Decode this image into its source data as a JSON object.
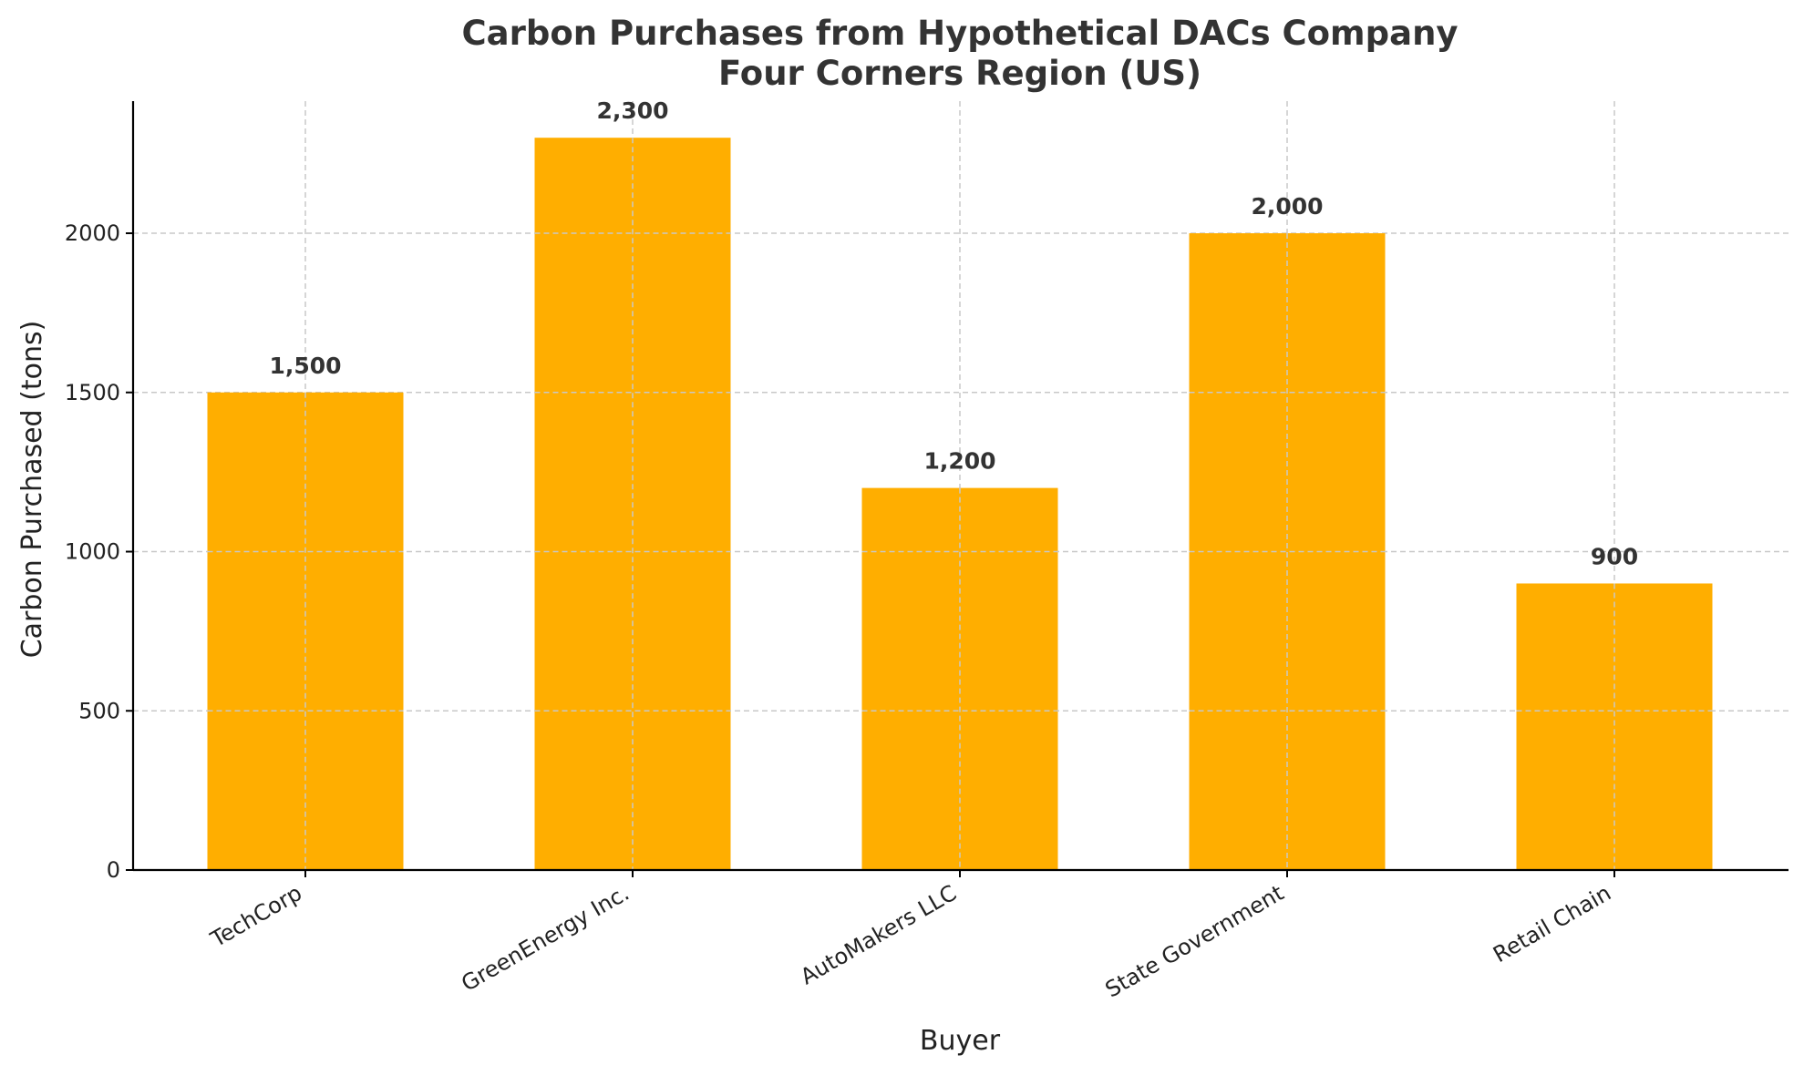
{
  "chart_data": {
    "type": "bar",
    "title_lines": [
      "Carbon Purchases from Hypothetical DACs Company",
      "Four Corners Region (US)"
    ],
    "xlabel": "Buyer",
    "ylabel": "Carbon Purchased (tons)",
    "categories": [
      "TechCorp",
      "GreenEnergy Inc.",
      "AutoMakers LLC",
      "State Government",
      "Retail Chain"
    ],
    "values": [
      1500,
      2300,
      1200,
      2000,
      900
    ],
    "data_labels": [
      "1,500",
      "2,300",
      "1,200",
      "2,000",
      "900"
    ],
    "ylim": [
      0,
      2415
    ],
    "yticks": [
      0,
      500,
      1000,
      1500,
      2000
    ],
    "grid": true,
    "bar_color": "#FFAE00"
  }
}
